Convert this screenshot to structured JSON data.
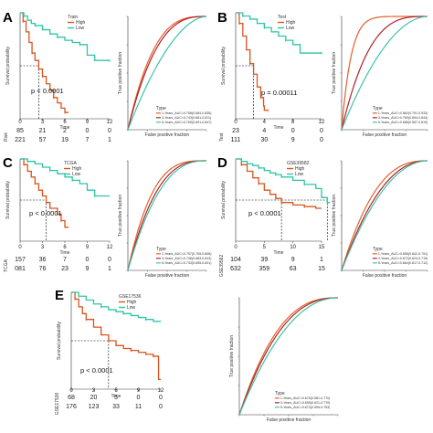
{
  "colors": {
    "high": "#d9541e",
    "low": "#2ec4a6",
    "roc_orange": "#e4602a",
    "roc_red": "#b0202a",
    "roc_green": "#3cc4a4"
  },
  "chart_data": [
    {
      "id": "A",
      "type": "line",
      "kind": "survival",
      "letter": "A",
      "legend_title": "Train",
      "series": [
        {
          "name": "High",
          "color_key": "high",
          "points": [
            [
              0,
              1
            ],
            [
              0.4,
              0.92
            ],
            [
              0.8,
              0.82
            ],
            [
              1.2,
              0.72
            ],
            [
              1.6,
              0.62
            ],
            [
              2,
              0.55
            ],
            [
              2.5,
              0.47
            ],
            [
              3,
              0.4
            ],
            [
              3.5,
              0.33
            ],
            [
              4,
              0.27
            ],
            [
              4.5,
              0.2
            ],
            [
              5,
              0.15
            ],
            [
              5.5,
              0.1
            ],
            [
              6,
              0.06
            ],
            [
              6.5,
              0.06
            ]
          ]
        },
        {
          "name": "Low",
          "color_key": "low",
          "points": [
            [
              0,
              1
            ],
            [
              0.5,
              0.97
            ],
            [
              1,
              0.93
            ],
            [
              1.5,
              0.9
            ],
            [
              2,
              0.88
            ],
            [
              3,
              0.84
            ],
            [
              4,
              0.8
            ],
            [
              5,
              0.77
            ],
            [
              6,
              0.74
            ],
            [
              7,
              0.72
            ],
            [
              8,
              0.7
            ],
            [
              9,
              0.6
            ],
            [
              10,
              0.55
            ],
            [
              12,
              0.55
            ]
          ]
        }
      ],
      "pvalue": "p < 0.0001",
      "ylabel": "Survival probability",
      "xlabel": "Time",
      "xticks": [
        0,
        3,
        6,
        9,
        12
      ],
      "risk_label": "Risk",
      "risk_rows": [
        {
          "label": "High",
          "values": [
            "85",
            "21",
            "2",
            "0",
            "0"
          ]
        },
        {
          "label": "Low",
          "values": [
            "221",
            "57",
            "19",
            "7",
            "1"
          ]
        }
      ]
    },
    {
      "id": "B",
      "type": "line",
      "kind": "survival",
      "letter": "B",
      "legend_title": "Test",
      "series": [
        {
          "name": "High",
          "color_key": "high",
          "points": [
            [
              0,
              1
            ],
            [
              0.5,
              0.9
            ],
            [
              1,
              0.78
            ],
            [
              1.5,
              0.65
            ],
            [
              2,
              0.52
            ],
            [
              2.5,
              0.42
            ],
            [
              3,
              0.3
            ],
            [
              3.5,
              0.2
            ],
            [
              3.9,
              0.12
            ],
            [
              4,
              0.08
            ],
            [
              4.5,
              0.08
            ]
          ]
        },
        {
          "name": "Low",
          "color_key": "low",
          "points": [
            [
              0,
              1
            ],
            [
              1,
              0.97
            ],
            [
              2,
              0.94
            ],
            [
              3,
              0.9
            ],
            [
              4,
              0.86
            ],
            [
              5,
              0.82
            ],
            [
              6,
              0.78
            ],
            [
              7,
              0.74
            ],
            [
              8,
              0.7
            ],
            [
              9,
              0.62
            ],
            [
              12,
              0.62
            ]
          ]
        }
      ],
      "pvalue": "p = 0.00011",
      "ylabel": "Survival probability",
      "xlabel": "Time",
      "xticks": [
        0,
        4,
        8,
        12
      ],
      "risk_label": "Test",
      "risk_rows": [
        {
          "label": "High",
          "values": [
            "23",
            "4",
            "0",
            "0"
          ]
        },
        {
          "label": "Low",
          "values": [
            "111",
            "30",
            "9",
            "0"
          ]
        }
      ]
    },
    {
      "id": "C",
      "type": "line",
      "kind": "survival",
      "letter": "C",
      "legend_title": "TCGA",
      "series": [
        {
          "name": "High",
          "color_key": "high",
          "points": [
            [
              0,
              1
            ],
            [
              0.5,
              0.93
            ],
            [
              1,
              0.85
            ],
            [
              1.5,
              0.78
            ],
            [
              2,
              0.7
            ],
            [
              2.5,
              0.62
            ],
            [
              3,
              0.55
            ],
            [
              3.5,
              0.47
            ],
            [
              4,
              0.4
            ],
            [
              5,
              0.33
            ],
            [
              5.5,
              0.25
            ],
            [
              6,
              0.17
            ],
            [
              6.5,
              0.17
            ]
          ]
        },
        {
          "name": "Low",
          "color_key": "low",
          "points": [
            [
              0,
              1
            ],
            [
              1,
              0.97
            ],
            [
              2,
              0.94
            ],
            [
              3,
              0.9
            ],
            [
              4,
              0.86
            ],
            [
              5,
              0.82
            ],
            [
              6,
              0.78
            ],
            [
              7,
              0.74
            ],
            [
              8,
              0.7
            ],
            [
              9,
              0.62
            ],
            [
              10,
              0.55
            ],
            [
              12,
              0.55
            ]
          ]
        }
      ],
      "pvalue": "p < 0.0001",
      "ylabel": "Survival probability",
      "xlabel": "Time",
      "xticks": [
        0,
        3,
        6,
        9,
        12
      ],
      "risk_label": "TCGA",
      "risk_rows": [
        {
          "label": "High",
          "values": [
            "157",
            "36",
            "7",
            "0",
            "0"
          ]
        },
        {
          "label": "Low",
          "values": [
            "081",
            "76",
            "23",
            "9",
            "1"
          ]
        }
      ]
    },
    {
      "id": "D",
      "type": "line",
      "kind": "survival",
      "letter": "D",
      "legend_title": "GSE39582",
      "series": [
        {
          "name": "High",
          "color_key": "high",
          "points": [
            [
              0,
              1
            ],
            [
              1,
              0.93
            ],
            [
              2,
              0.85
            ],
            [
              3,
              0.77
            ],
            [
              4,
              0.7
            ],
            [
              5,
              0.62
            ],
            [
              6,
              0.57
            ],
            [
              7,
              0.52
            ],
            [
              8,
              0.47
            ],
            [
              10,
              0.44
            ],
            [
              12,
              0.42
            ],
            [
              14,
              0.4
            ],
            [
              15,
              0.4
            ]
          ]
        },
        {
          "name": "Low",
          "color_key": "low",
          "points": [
            [
              0,
              1
            ],
            [
              1,
              0.97
            ],
            [
              2,
              0.94
            ],
            [
              3,
              0.92
            ],
            [
              4,
              0.89
            ],
            [
              5,
              0.86
            ],
            [
              6,
              0.83
            ],
            [
              7,
              0.81
            ],
            [
              8,
              0.78
            ],
            [
              10,
              0.74
            ],
            [
              12,
              0.69
            ],
            [
              14,
              0.64
            ],
            [
              15,
              0.53
            ],
            [
              16,
              0.47
            ],
            [
              16.5,
              0.47
            ]
          ]
        }
      ],
      "pvalue": "p < 0.0001",
      "ylabel": "Survival probability",
      "xlabel": "Time",
      "xticks": [
        0,
        5,
        10,
        15
      ],
      "risk_label": "GSE39582",
      "risk_rows": [
        {
          "label": "High",
          "values": [
            "104",
            "39",
            "9",
            "1"
          ]
        },
        {
          "label": "Low",
          "values": [
            "632",
            "359",
            "63",
            "15"
          ]
        }
      ]
    },
    {
      "id": "E",
      "type": "line",
      "kind": "survival",
      "letter": "E",
      "legend_title": "GSE17536",
      "series": [
        {
          "name": "High",
          "color_key": "high",
          "points": [
            [
              0,
              1
            ],
            [
              0.5,
              0.93
            ],
            [
              1,
              0.85
            ],
            [
              1.5,
              0.78
            ],
            [
              2,
              0.72
            ],
            [
              3,
              0.64
            ],
            [
              4,
              0.56
            ],
            [
              5,
              0.5
            ],
            [
              6,
              0.45
            ],
            [
              7,
              0.42
            ],
            [
              8,
              0.4
            ],
            [
              9,
              0.38
            ],
            [
              10,
              0.36
            ],
            [
              11,
              0.34
            ],
            [
              11.7,
              0.1
            ],
            [
              12,
              0.1
            ]
          ]
        },
        {
          "name": "Low",
          "color_key": "low",
          "points": [
            [
              0,
              1
            ],
            [
              1,
              0.96
            ],
            [
              2,
              0.92
            ],
            [
              3,
              0.88
            ],
            [
              4,
              0.85
            ],
            [
              5,
              0.82
            ],
            [
              6,
              0.8
            ],
            [
              7,
              0.78
            ],
            [
              8,
              0.76
            ],
            [
              9,
              0.74
            ],
            [
              10,
              0.72
            ],
            [
              11,
              0.7
            ],
            [
              12,
              0.7
            ]
          ]
        }
      ],
      "pvalue": "p < 0.0001",
      "ylabel": "Survival probability",
      "xlabel": "Time",
      "xticks": [
        0,
        3,
        6,
        9,
        12
      ],
      "risk_label": "GSE17536",
      "risk_rows": [
        {
          "label": "High",
          "values": [
            "68",
            "20",
            "5",
            "0",
            "0"
          ]
        },
        {
          "label": "Low",
          "values": [
            "176",
            "123",
            "33",
            "11",
            "0"
          ]
        }
      ]
    },
    {
      "id": "A-roc",
      "type": "line",
      "kind": "roc",
      "xlabel": "False positive fraction",
      "ylabel": "True positive fraction",
      "legend_title": "Type",
      "series": [
        {
          "name": "1-Years_AUC=0.758(0.684-0.835)",
          "color_key": "roc_orange",
          "k": 3.1
        },
        {
          "name": "3-Years_AUC=0.743(0.681-0.811)",
          "color_key": "roc_red",
          "k": 2.8
        },
        {
          "name": "5-Years_AUC=0.769(0.691-0.847)",
          "color_key": "roc_green",
          "k": 1.8
        }
      ]
    },
    {
      "id": "B-roc",
      "type": "line",
      "kind": "roc",
      "xlabel": "False positive fraction",
      "ylabel": "True positive fraction",
      "legend_title": "Type",
      "series": [
        {
          "name": "1-Years_AUC=0.862(0.791-0.933)",
          "color_key": "roc_orange",
          "k": 9.0
        },
        {
          "name": "3-Years_AUC=0.769(0.694-0.844)",
          "color_key": "roc_red",
          "k": 3.2
        },
        {
          "name": "5-Years_AUC=0.688(0.557-0.819)",
          "color_key": "roc_green",
          "k": 1.9
        }
      ]
    },
    {
      "id": "C-roc",
      "type": "line",
      "kind": "roc",
      "xlabel": "False positive fraction",
      "ylabel": "True positive fraction",
      "legend_title": "Type",
      "series": [
        {
          "name": "1-Years_AUC=0.757(0.705-0.808)",
          "color_key": "roc_orange",
          "k": 3.3
        },
        {
          "name": "3-Years_AUC=0.748(0.683-0.813)",
          "color_key": "roc_red",
          "k": 2.8
        },
        {
          "name": "5-Years_AUC=0.743(0.655-0.831)",
          "color_key": "roc_green",
          "k": 2.5
        }
      ]
    },
    {
      "id": "D-roc",
      "type": "line",
      "kind": "roc",
      "xlabel": "False positive fraction",
      "ylabel": "True positive fraction",
      "legend_title": "Type",
      "series": [
        {
          "name": "1-Years_AUC=0.698(0.642-0.751)",
          "color_key": "roc_orange",
          "k": 2.6
        },
        {
          "name": "3-Years_AUC=0.672(0.624-0.719)",
          "color_key": "roc_red",
          "k": 2.2
        },
        {
          "name": "5-Years_AUC=0.664(0.617-0.712)",
          "color_key": "roc_green",
          "k": 2.0
        }
      ]
    },
    {
      "id": "E-roc",
      "type": "line",
      "kind": "roc",
      "xlabel": "False positive fraction",
      "ylabel": "True positive fraction",
      "legend_title": "Type",
      "series": [
        {
          "name": "1-Years_AUC=0.675(0.581-0.770)",
          "color_key": "roc_orange",
          "k": 2.6
        },
        {
          "name": "3-Years_AUC=0.695(0.621-0.770)",
          "color_key": "roc_red",
          "k": 2.4
        },
        {
          "name": "5-Years_AUC=0.673(0.595-0.753)",
          "color_key": "roc_green",
          "k": 2.1
        }
      ]
    }
  ]
}
